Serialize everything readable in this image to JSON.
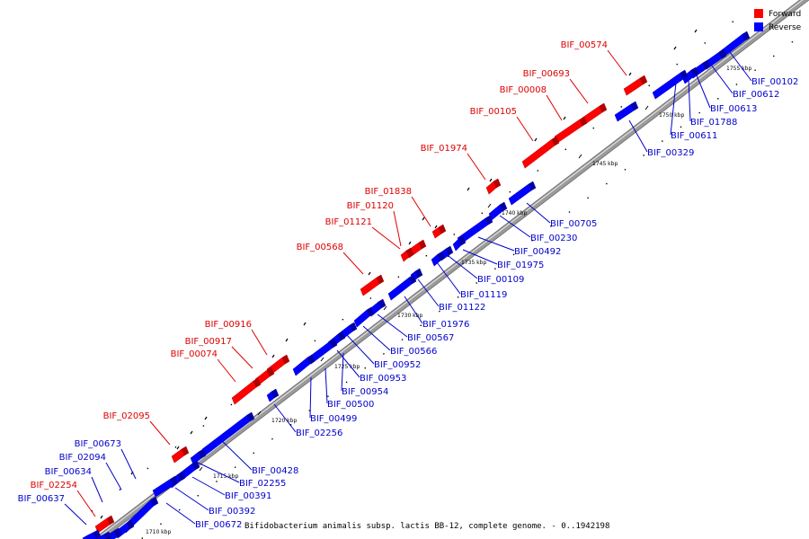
{
  "legend": {
    "forward_label": "Forward",
    "reverse_label": "Reverse",
    "forward_color": "#ff0000",
    "reverse_color": "#0000ff"
  },
  "caption": "Bifidobacterium animalis subsp. lactis BB-12, complete genome. - 0..1942198",
  "ticks": [
    "1710 kbp",
    "1715 kbp",
    "1720 kbp",
    "1725 kbp",
    "1730 kbp",
    "1735 kbp",
    "1740 kbp",
    "1745 kbp",
    "1750 kbp",
    "1755 kbp"
  ],
  "forward_genes": [
    "BIF_00574",
    "BIF_00693",
    "BIF_00008",
    "BIF_00105",
    "BIF_01974",
    "BIF_01838",
    "BIF_01120",
    "BIF_01121",
    "BIF_00568",
    "BIF_00916",
    "BIF_00917",
    "BIF_00074",
    "BIF_02095",
    "BIF_02254"
  ],
  "reverse_genes": [
    "BIF_00102",
    "BIF_00612",
    "BIF_00613",
    "BIF_01788",
    "BIF_00611",
    "BIF_00329",
    "BIF_00705",
    "BIF_00230",
    "BIF_00492",
    "BIF_01975",
    "BIF_00109",
    "BIF_01119",
    "BIF_01122",
    "BIF_01976",
    "BIF_00567",
    "BIF_00566",
    "BIF_00952",
    "BIF_00953",
    "BIF_00954",
    "BIF_00500",
    "BIF_00499",
    "BIF_02256",
    "BIF_00428",
    "BIF_02255",
    "BIF_00391",
    "BIF_00392",
    "BIF_00672",
    "BIF_00673",
    "BIF_02094",
    "BIF_00634",
    "BIF_00637"
  ]
}
